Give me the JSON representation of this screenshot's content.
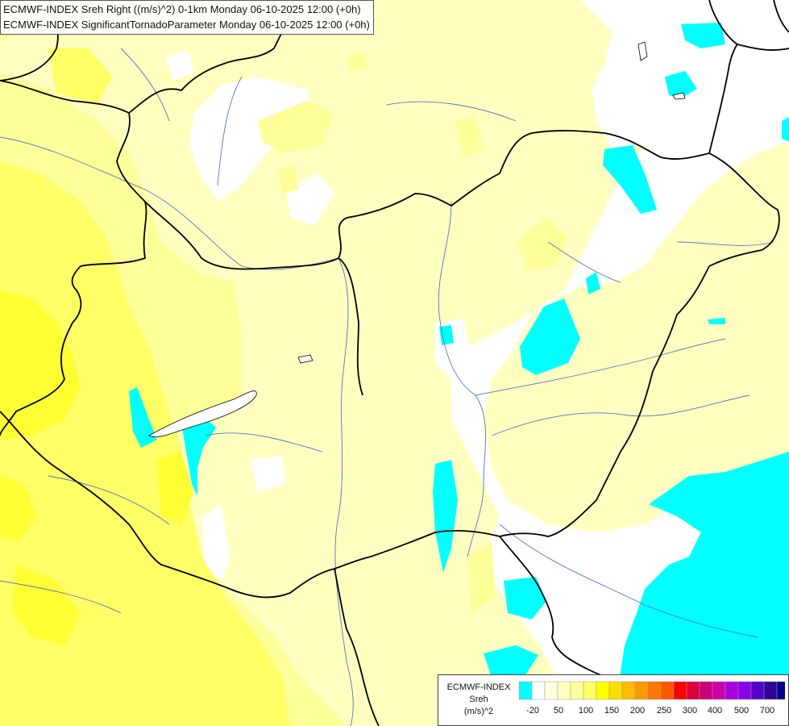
{
  "header": {
    "line1": "ECMWF-INDEX Sreh Right ((m/s)^2) 0-1km Monday 06-10-2025 12:00 (+0h)",
    "line2": "ECMWF-INDEX SignificantTornadoParameter Monday 06-10-2025 12:00 (+0h)"
  },
  "legend": {
    "model": "ECMWF-INDEX",
    "variable": "Sreh",
    "unit": "(m/s)^2",
    "colors": [
      "#00ffff",
      "#ffffff",
      "#ffffe0",
      "#ffffc0",
      "#ffff9a",
      "#ffff66",
      "#ffff00",
      "#ffdd00",
      "#ffbb00",
      "#ff9900",
      "#ff7700",
      "#ff5500",
      "#ff0000",
      "#e00040",
      "#cc0077",
      "#cc00aa",
      "#aa00dd",
      "#8800ee",
      "#5500cc",
      "#330099",
      "#000088"
    ],
    "labels": [
      "-20",
      "50",
      "100",
      "150",
      "200",
      "250",
      "300",
      "400",
      "500",
      "700"
    ]
  },
  "map": {
    "colors": {
      "background": "#ffffc0",
      "low": "#ffffff",
      "negative": "#00ffff",
      "mid": "#ffff9a",
      "high": "#ffff66",
      "highest": "#ffff33",
      "border": "#000000",
      "river": "#5577bb"
    }
  }
}
